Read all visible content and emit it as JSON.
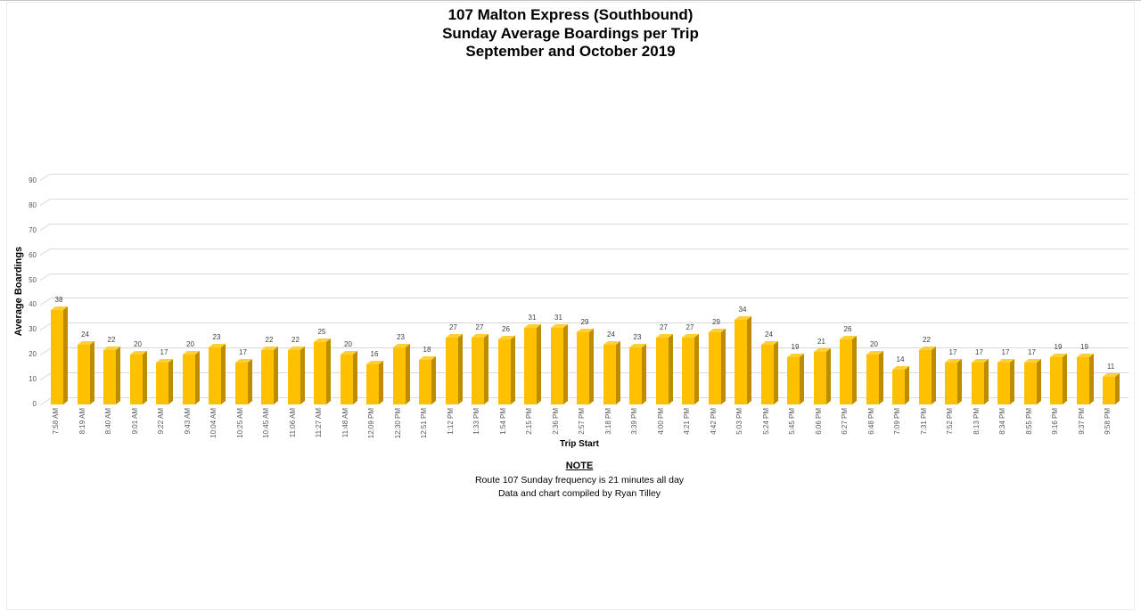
{
  "header": {
    "title_lines": [
      "107 Malton Express (Southbound)",
      "Sunday Average Boardings per Trip",
      "September and October 2019"
    ]
  },
  "chart_data": {
    "type": "bar",
    "style": "3d-column",
    "title": "107 Malton Express (Southbound) — Sunday Average Boardings per Trip — September and October 2019",
    "xlabel": "Trip Start",
    "ylabel": "Average Boardings",
    "ylim": [
      0,
      90
    ],
    "ytick_step": 10,
    "grid": true,
    "legend": "none",
    "colors": {
      "bar_front": "#FFC000",
      "bar_side": "#BD8C00",
      "bar_top": "#FFCF35",
      "gridline": "#D9D9D9",
      "tick_label": "#595959",
      "value_label": "#404040"
    },
    "categories": [
      "7:58 AM",
      "8:19 AM",
      "8:40 AM",
      "9:01 AM",
      "9:22 AM",
      "9:43 AM",
      "10:04 AM",
      "10:25 AM",
      "10:45 AM",
      "11:06 AM",
      "11:27 AM",
      "11:48 AM",
      "12:09 PM",
      "12:30 PM",
      "12:51 PM",
      "1:12 PM",
      "1:33 PM",
      "1:54 PM",
      "2:15 PM",
      "2:36 PM",
      "2:57 PM",
      "3:18 PM",
      "3:39 PM",
      "4:00 PM",
      "4:21 PM",
      "4:42 PM",
      "5:03 PM",
      "5:24 PM",
      "5:45 PM",
      "6:06 PM",
      "6:27 PM",
      "6:48 PM",
      "7:09 PM",
      "7:31 PM",
      "7:52 PM",
      "8:13 PM",
      "8:34 PM",
      "8:55 PM",
      "9:16 PM",
      "9:37 PM",
      "9:58 PM"
    ],
    "values": [
      38,
      24,
      22,
      20,
      17,
      20,
      23,
      17,
      22,
      22,
      25,
      20,
      16,
      23,
      18,
      27,
      27,
      26,
      31,
      31,
      29,
      24,
      23,
      27,
      27,
      29,
      34,
      24,
      19,
      21,
      26,
      20,
      14,
      22,
      17,
      17,
      17,
      17,
      19,
      19,
      11
    ]
  },
  "note": {
    "heading": "NOTE",
    "lines": [
      "Route 107 Sunday frequency is 21 minutes all day",
      "Data and chart compiled by Ryan Tilley"
    ]
  }
}
